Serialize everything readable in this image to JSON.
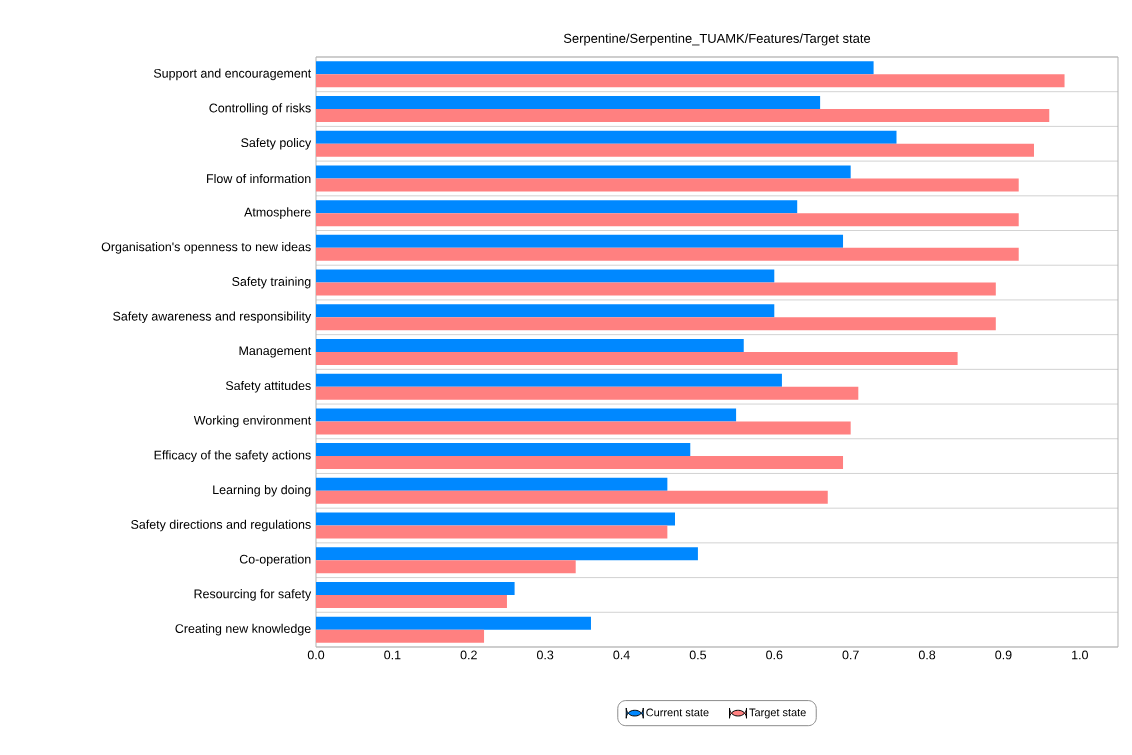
{
  "chart_data": {
    "type": "bar",
    "orientation": "horizontal",
    "title": "Serpentine/Serpentine_TUAMK/Features/Target state",
    "categories": [
      "Support and encouragement",
      "Controlling of risks",
      "Safety policy",
      "Flow of information",
      "Atmosphere",
      "Organisation's openness to new ideas",
      "Safety training",
      "Safety awareness and responsibility",
      "Management",
      "Safety attitudes",
      "Working environment",
      "Efficacy of the safety actions",
      "Learning by doing",
      "Safety directions and regulations",
      "Co-operation",
      "Resourcing for safety",
      "Creating new knowledge"
    ],
    "series": [
      {
        "name": "Current state",
        "color": "#0088ff",
        "values": [
          0.73,
          0.66,
          0.76,
          0.7,
          0.63,
          0.69,
          0.6,
          0.6,
          0.56,
          0.61,
          0.55,
          0.49,
          0.46,
          0.47,
          0.5,
          0.26,
          0.36
        ]
      },
      {
        "name": "Target state",
        "color": "#ff8080",
        "values": [
          0.98,
          0.96,
          0.94,
          0.92,
          0.92,
          0.92,
          0.89,
          0.89,
          0.84,
          0.71,
          0.7,
          0.69,
          0.67,
          0.46,
          0.34,
          0.25,
          0.22
        ]
      }
    ],
    "xlim": [
      0,
      1.05
    ],
    "xticks": [
      {
        "value": 0,
        "label": "0.0"
      },
      0.1,
      0.2,
      0.3,
      0.4,
      0.5,
      0.6,
      0.7,
      0.8,
      0.9,
      {
        "value": 1,
        "label": "1.0"
      }
    ],
    "grid": "y",
    "legend": "bottom"
  }
}
